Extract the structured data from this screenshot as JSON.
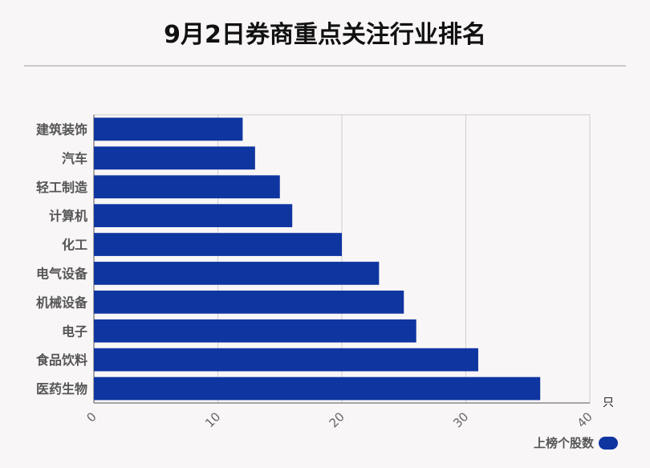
{
  "page": {
    "title": "9月2日券商重点关注行业排名"
  },
  "chart_data": {
    "type": "bar",
    "orientation": "horizontal",
    "categories": [
      "建筑装饰",
      "汽车",
      "轻工制造",
      "计算机",
      "化工",
      "电气设备",
      "机械设备",
      "电子",
      "食品饮料",
      "医药生物"
    ],
    "series": [
      {
        "name": "上榜个股数",
        "values": [
          12,
          13,
          15,
          16,
          20,
          23,
          25,
          26,
          31,
          36
        ],
        "color": "#0f35a0"
      }
    ],
    "x_ticks": [
      "0",
      "10",
      "20",
      "30",
      "40"
    ],
    "xlim": [
      0,
      40
    ],
    "x_unit": "只",
    "grid": true,
    "legend_position": "bottom-right"
  }
}
